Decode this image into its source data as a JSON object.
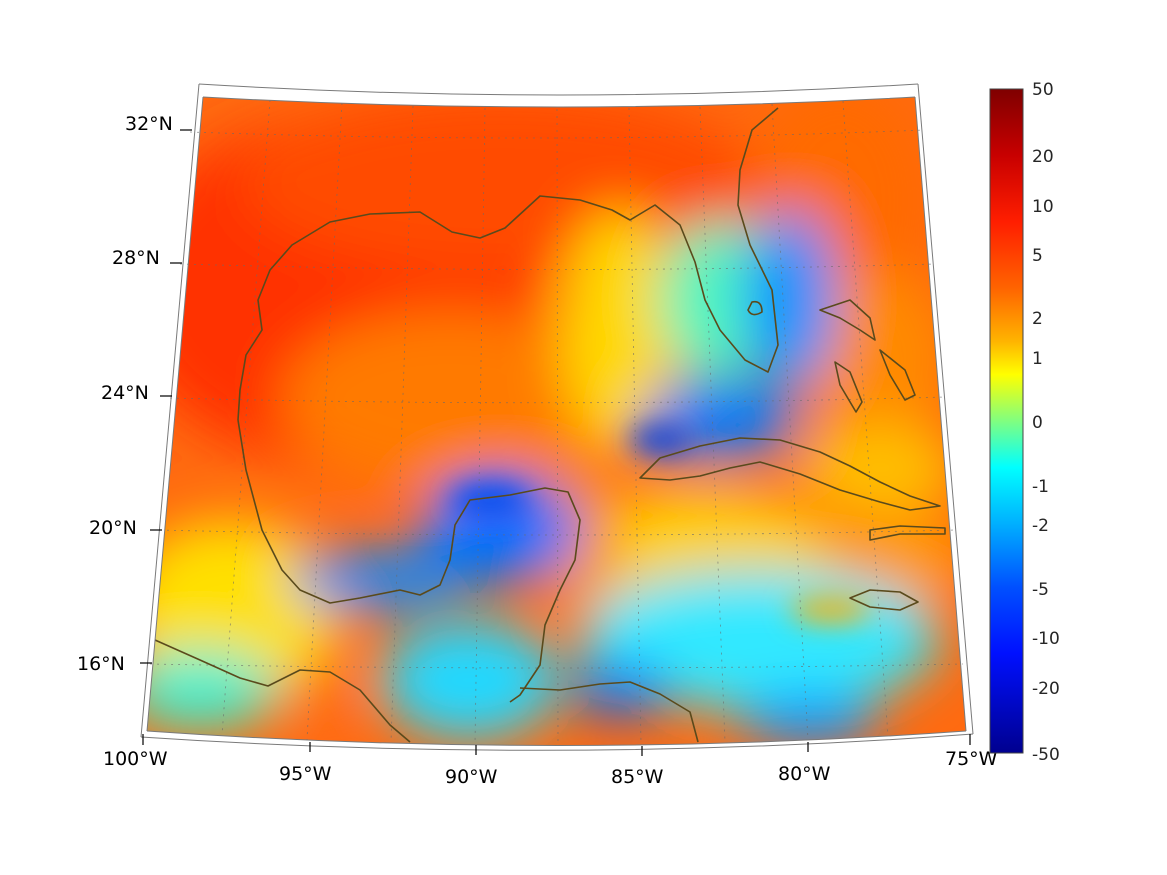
{
  "map": {
    "longitude_ticks": [
      "100°W",
      "95°W",
      "90°W",
      "85°W",
      "80°W",
      "75°W"
    ],
    "latitude_ticks": [
      "32°N",
      "28°N",
      "24°N",
      "20°N",
      "16°N"
    ],
    "colors": {
      "deep_red": "#7f0000",
      "red": "#ff2a00",
      "orange": "#ff8c00",
      "yellow": "#ffff00",
      "cyan": "#00e5ff",
      "blue": "#0050ff",
      "deep_blue": "#00008f",
      "coastline": "#5a4a1c"
    }
  },
  "colorbar": {
    "labels": [
      "50",
      "20",
      "10",
      "5",
      "2",
      "1",
      "0",
      "-1",
      "-2",
      "-5",
      "-10",
      "-20",
      "-50"
    ]
  }
}
